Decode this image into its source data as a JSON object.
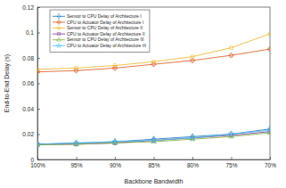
{
  "chart_data": {
    "type": "line",
    "xlabel": "Backbone Bandwidth",
    "ylabel": "End-to-End Delay (s)",
    "categories": [
      "100%",
      "95%",
      "90%",
      "85%",
      "80%",
      "75%",
      "70%"
    ],
    "series": [
      {
        "name": "Sensor to CPU Delay of Architecture I",
        "color": "#0072bd",
        "marker": "diamond",
        "values": [
          0.012,
          0.013,
          0.014,
          0.016,
          0.018,
          0.02,
          0.024
        ]
      },
      {
        "name": "CPU to Actuator Delay of Architecture I",
        "color": "#d95319",
        "marker": "plus",
        "values": [
          0.069,
          0.07,
          0.072,
          0.075,
          0.078,
          0.082,
          0.087
        ]
      },
      {
        "name": "Sensor to CPU Delay of Architecture II",
        "color": "#edb120",
        "marker": "circle",
        "values": [
          0.071,
          0.072,
          0.074,
          0.077,
          0.081,
          0.088,
          0.099
        ]
      },
      {
        "name": "CPU to Actuator Delay of Architecture II",
        "color": "#7e2f8e",
        "marker": "square",
        "values": [
          0.012,
          0.012,
          0.013,
          0.015,
          0.017,
          0.019,
          0.022
        ]
      },
      {
        "name": "Sensor to CPU Delay of Architecture III",
        "color": "#77ac30",
        "marker": "triangle",
        "values": [
          0.0115,
          0.012,
          0.013,
          0.014,
          0.016,
          0.018,
          0.021
        ]
      },
      {
        "name": "CPU to Actuator Delay of Architecture III",
        "color": "#4dbeee",
        "marker": "star",
        "values": [
          0.012,
          0.013,
          0.014,
          0.015,
          0.017,
          0.02,
          0.023
        ]
      }
    ],
    "ylim": [
      0,
      0.12
    ],
    "yticks": [
      0,
      0.02,
      0.04,
      0.06,
      0.08,
      0.1,
      0.12
    ],
    "grid": false,
    "legend": "top-left"
  }
}
